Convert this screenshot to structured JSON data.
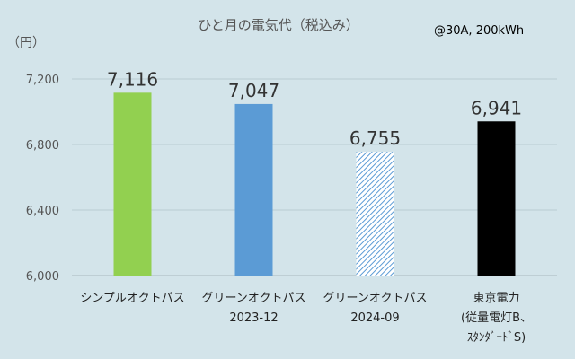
{
  "chart_data": {
    "type": "bar",
    "title": "ひと月の電気代（税込み）",
    "annotation": "@30A, 200kWh",
    "yunit": "（円）",
    "ylim": [
      6000,
      7300
    ],
    "yticks": [
      6000,
      6400,
      6800,
      7200
    ],
    "ytick_labels": [
      "6,000",
      "6,400",
      "6,800",
      "7,200"
    ],
    "grid": true,
    "categories": [
      [
        "シンプルオクトパス"
      ],
      [
        "グリーンオクトパス",
        "2023-12"
      ],
      [
        "グリーンオクトパス",
        "2024-09"
      ],
      [
        "東京電力",
        "(従量電灯B、",
        "ｽﾀﾝﾀﾞｰﾄﾞS)"
      ]
    ],
    "values": [
      7116,
      7047,
      6755,
      6941
    ],
    "value_labels": [
      "7,116",
      "7,047",
      "6,755",
      "6,941"
    ],
    "colors": [
      "#92d050",
      "#5b9bd5",
      "#5b9bd5",
      "#000000"
    ],
    "patterns": [
      "solid",
      "solid",
      "diagonal-hatch",
      "solid"
    ]
  }
}
